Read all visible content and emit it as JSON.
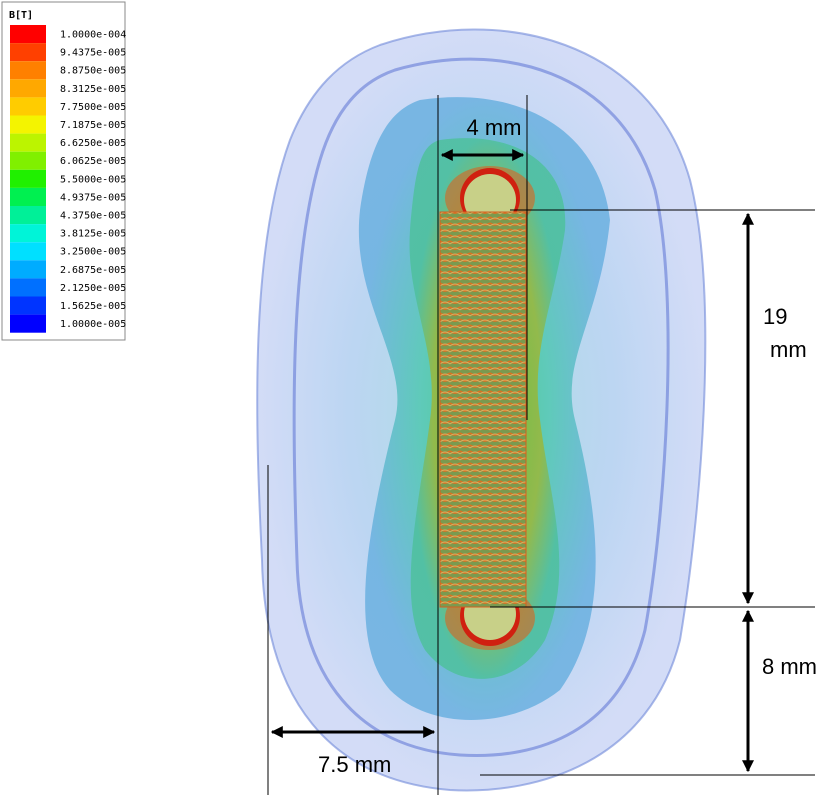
{
  "legend": {
    "title": "B[T]",
    "items": [
      {
        "label": "1.0000e-004",
        "color": "#ff0000"
      },
      {
        "label": "9.4375e-005",
        "color": "#ff4000"
      },
      {
        "label": "8.8750e-005",
        "color": "#ff8000"
      },
      {
        "label": "8.3125e-005",
        "color": "#ffa800"
      },
      {
        "label": "7.7500e-005",
        "color": "#ffcc00"
      },
      {
        "label": "7.1875e-005",
        "color": "#f4f400"
      },
      {
        "label": "6.6250e-005",
        "color": "#bcf400"
      },
      {
        "label": "6.0625e-005",
        "color": "#80f000"
      },
      {
        "label": "5.5000e-005",
        "color": "#20f000"
      },
      {
        "label": "4.9375e-005",
        "color": "#00f050"
      },
      {
        "label": "4.3750e-005",
        "color": "#00f098"
      },
      {
        "label": "3.8125e-005",
        "color": "#00f4d8"
      },
      {
        "label": "3.2500e-005",
        "color": "#00e0ff"
      },
      {
        "label": "2.6875e-005",
        "color": "#00acff"
      },
      {
        "label": "2.1250e-005",
        "color": "#0070ff"
      },
      {
        "label": "1.5625e-005",
        "color": "#0034ff"
      },
      {
        "label": "1.0000e-005",
        "color": "#0000ff"
      }
    ]
  },
  "dimensions": {
    "coil_width": "4 mm",
    "coil_length": [
      "19",
      "mm"
    ],
    "end_gap": "8 mm",
    "side_gap": "7.5 mm"
  }
}
